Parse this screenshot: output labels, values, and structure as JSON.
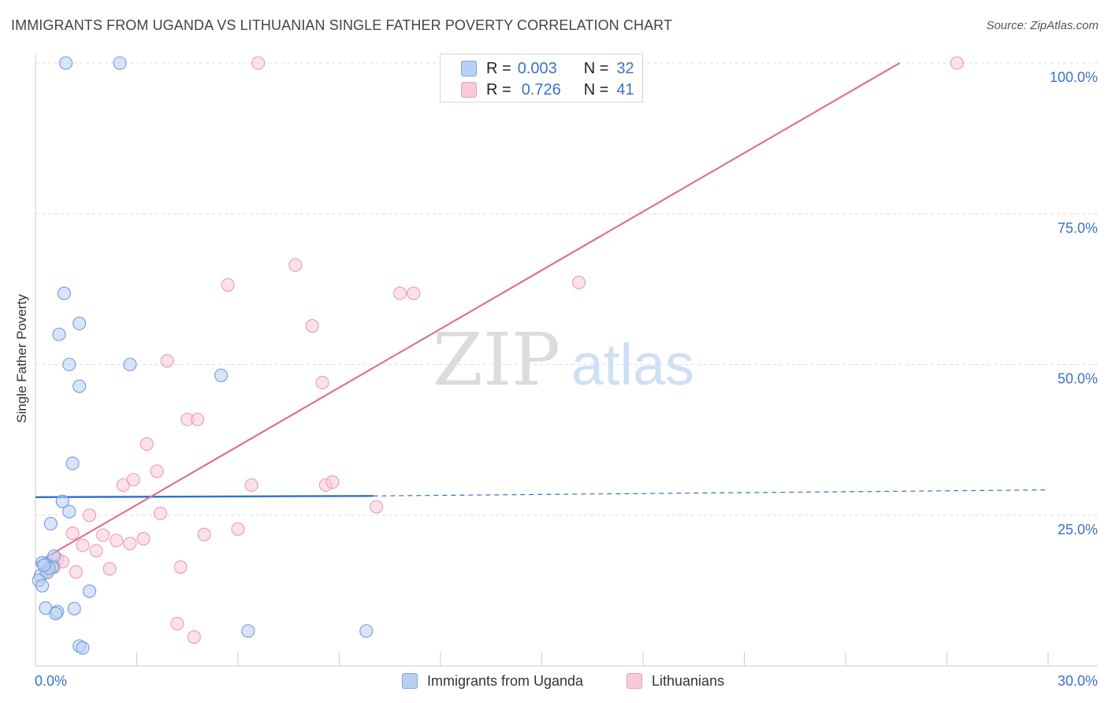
{
  "header": {
    "title": "IMMIGRANTS FROM UGANDA VS LITHUANIAN SINGLE FATHER POVERTY CORRELATION CHART",
    "source": "Source: ZipAtlas.com"
  },
  "watermark": {
    "zip": "ZIP",
    "atlas": "atlas"
  },
  "legend": {
    "uganda": {
      "r_label": "R =",
      "r_value": "0.003",
      "n_label": "N =",
      "n_value": "32"
    },
    "lithuanians": {
      "r_label": "R =",
      "r_value": "0.726",
      "n_label": "N =",
      "n_value": "41"
    }
  },
  "bottom_legend": {
    "uganda": "Immigrants from Uganda",
    "lithuanians": "Lithuanians"
  },
  "colors": {
    "uganda_fill": "#b8d0f2",
    "uganda_stroke": "#6f9cdc",
    "uganda_line": "#2f72c9",
    "lith_fill": "#f8c9d8",
    "lith_stroke": "#ea9bb5",
    "lith_line": "#e0709a",
    "tick_label": "#3a72c8"
  },
  "chart_data": {
    "type": "scatter",
    "title": "IMMIGRANTS FROM UGANDA VS LITHUANIAN SINGLE FATHER POVERTY CORRELATION CHART",
    "xlabel": "",
    "ylabel": "Single Father Poverty",
    "xlim": [
      0,
      30
    ],
    "ylim": [
      0,
      100
    ],
    "x_tick_labels": [
      {
        "value": 0,
        "label": "0.0%"
      },
      {
        "value": 30,
        "label": "30.0%"
      }
    ],
    "y_tick_labels": [
      {
        "value": 100,
        "label": "100.0%"
      },
      {
        "value": 75,
        "label": "75.0%"
      },
      {
        "value": 50,
        "label": "50.0%"
      },
      {
        "value": 25,
        "label": "25.0%"
      }
    ],
    "grid": true,
    "series": [
      {
        "name": "Immigrants from Uganda",
        "R": 0.003,
        "N": 32,
        "points": [
          [
            0.9,
            100
          ],
          [
            2.5,
            100
          ],
          [
            0.85,
            61.8
          ],
          [
            0.7,
            55
          ],
          [
            1.3,
            56.8
          ],
          [
            1.0,
            50
          ],
          [
            2.8,
            50
          ],
          [
            1.3,
            46.4
          ],
          [
            5.5,
            48.2
          ],
          [
            1.1,
            33.6
          ],
          [
            0.8,
            27.3
          ],
          [
            1.0,
            25.6
          ],
          [
            0.45,
            23.6
          ],
          [
            0.55,
            18.2
          ],
          [
            0.5,
            16.4
          ],
          [
            0.3,
            16.9
          ],
          [
            0.2,
            17.1
          ],
          [
            0.15,
            15.0
          ],
          [
            0.35,
            15.5
          ],
          [
            0.4,
            16.2
          ],
          [
            0.1,
            14.2
          ],
          [
            0.2,
            13.3
          ],
          [
            1.6,
            12.4
          ],
          [
            0.3,
            9.6
          ],
          [
            0.65,
            9.0
          ],
          [
            0.6,
            8.7
          ],
          [
            1.15,
            9.5
          ],
          [
            6.3,
            5.8
          ],
          [
            9.8,
            5.8
          ],
          [
            1.3,
            3.3
          ],
          [
            1.4,
            3.0
          ],
          [
            0.25,
            16.7
          ]
        ],
        "trend": {
          "x": [
            0,
            10
          ],
          "y": [
            28.0,
            28.2
          ],
          "dashed_to": [
            30,
            29.2
          ]
        }
      },
      {
        "name": "Lithuanians",
        "R": 0.726,
        "N": 41,
        "points": [
          [
            6.6,
            100
          ],
          [
            27.3,
            100
          ],
          [
            7.7,
            66.5
          ],
          [
            5.7,
            63.2
          ],
          [
            10.8,
            61.8
          ],
          [
            11.2,
            61.8
          ],
          [
            16.1,
            63.6
          ],
          [
            8.2,
            56.4
          ],
          [
            3.9,
            50.6
          ],
          [
            8.5,
            47.0
          ],
          [
            4.5,
            40.9
          ],
          [
            4.8,
            40.9
          ],
          [
            3.3,
            36.8
          ],
          [
            3.6,
            32.3
          ],
          [
            2.6,
            30.0
          ],
          [
            2.9,
            30.9
          ],
          [
            6.4,
            30.0
          ],
          [
            8.6,
            30.0
          ],
          [
            8.8,
            30.5
          ],
          [
            10.1,
            26.4
          ],
          [
            1.6,
            25.0
          ],
          [
            3.7,
            25.3
          ],
          [
            1.1,
            22.0
          ],
          [
            2.0,
            21.7
          ],
          [
            2.4,
            20.8
          ],
          [
            2.8,
            20.3
          ],
          [
            3.2,
            21.1
          ],
          [
            5.0,
            21.8
          ],
          [
            6.0,
            22.7
          ],
          [
            1.4,
            20.0
          ],
          [
            1.8,
            19.1
          ],
          [
            0.65,
            17.7
          ],
          [
            0.8,
            17.3
          ],
          [
            0.5,
            16.6
          ],
          [
            0.3,
            15.6
          ],
          [
            1.2,
            15.6
          ],
          [
            2.2,
            16.1
          ],
          [
            4.3,
            16.4
          ],
          [
            4.2,
            7.0
          ],
          [
            4.7,
            4.8
          ],
          [
            0.55,
            16.4
          ]
        ],
        "trend": {
          "x": [
            0,
            25.6
          ],
          "y": [
            17.0,
            100
          ]
        }
      }
    ]
  }
}
